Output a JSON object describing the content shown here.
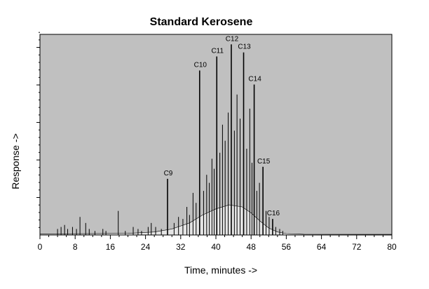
{
  "chart_data": {
    "type": "line",
    "title": "Standard Kerosene",
    "xlabel": "Time, minutes ->",
    "ylabel": "Response ->",
    "xlim": [
      0,
      80
    ],
    "ylim": [
      0,
      100
    ],
    "x_ticks": [
      "0",
      "8",
      "16",
      "24",
      "32",
      "40",
      "48",
      "56",
      "64",
      "72",
      "80"
    ],
    "plot_background": "#c0c0c0",
    "trace_color": "#000000",
    "grid": false,
    "legend": "none",
    "peaks": [
      {
        "label": "C9",
        "x": 29.0,
        "y": 28
      },
      {
        "label": "C10",
        "x": 36.3,
        "y": 82
      },
      {
        "label": "C11",
        "x": 40.2,
        "y": 89
      },
      {
        "label": "C12",
        "x": 43.5,
        "y": 95
      },
      {
        "label": "C13",
        "x": 46.3,
        "y": 91
      },
      {
        "label": "C14",
        "x": 48.7,
        "y": 75
      },
      {
        "label": "C15",
        "x": 50.7,
        "y": 34
      },
      {
        "label": "C16",
        "x": 52.9,
        "y": 8
      }
    ],
    "minor_peaks": [
      {
        "x": 4.0,
        "y": 3
      },
      {
        "x": 4.8,
        "y": 4
      },
      {
        "x": 5.6,
        "y": 5
      },
      {
        "x": 6.3,
        "y": 3
      },
      {
        "x": 7.4,
        "y": 4
      },
      {
        "x": 8.3,
        "y": 3
      },
      {
        "x": 9.1,
        "y": 9
      },
      {
        "x": 10.4,
        "y": 6
      },
      {
        "x": 11.2,
        "y": 3
      },
      {
        "x": 12.5,
        "y": 2
      },
      {
        "x": 14.3,
        "y": 3
      },
      {
        "x": 15.0,
        "y": 2
      },
      {
        "x": 17.8,
        "y": 12
      },
      {
        "x": 19.4,
        "y": 2
      },
      {
        "x": 21.2,
        "y": 4
      },
      {
        "x": 22.3,
        "y": 3
      },
      {
        "x": 23.1,
        "y": 2
      },
      {
        "x": 24.6,
        "y": 4
      },
      {
        "x": 25.3,
        "y": 6
      },
      {
        "x": 26.3,
        "y": 4
      },
      {
        "x": 27.6,
        "y": 3
      },
      {
        "x": 30.5,
        "y": 6
      },
      {
        "x": 31.5,
        "y": 9
      },
      {
        "x": 32.5,
        "y": 8
      },
      {
        "x": 33.4,
        "y": 14
      },
      {
        "x": 34.0,
        "y": 10
      },
      {
        "x": 34.8,
        "y": 21
      },
      {
        "x": 35.5,
        "y": 16
      },
      {
        "x": 37.2,
        "y": 22
      },
      {
        "x": 37.9,
        "y": 30
      },
      {
        "x": 38.5,
        "y": 26
      },
      {
        "x": 39.1,
        "y": 38
      },
      {
        "x": 39.6,
        "y": 33
      },
      {
        "x": 40.9,
        "y": 41
      },
      {
        "x": 41.5,
        "y": 55
      },
      {
        "x": 42.1,
        "y": 47
      },
      {
        "x": 42.8,
        "y": 61
      },
      {
        "x": 44.2,
        "y": 52
      },
      {
        "x": 44.8,
        "y": 70
      },
      {
        "x": 45.5,
        "y": 58
      },
      {
        "x": 47.0,
        "y": 43
      },
      {
        "x": 47.7,
        "y": 63
      },
      {
        "x": 48.2,
        "y": 36
      },
      {
        "x": 49.3,
        "y": 22
      },
      {
        "x": 49.9,
        "y": 26
      },
      {
        "x": 51.4,
        "y": 12
      },
      {
        "x": 52.1,
        "y": 9
      },
      {
        "x": 53.6,
        "y": 4
      },
      {
        "x": 54.5,
        "y": 3
      },
      {
        "x": 55.2,
        "y": 2
      }
    ],
    "envelope": [
      {
        "x": 0,
        "y": 0.5
      },
      {
        "x": 20,
        "y": 0.8
      },
      {
        "x": 26,
        "y": 1.5
      },
      {
        "x": 30,
        "y": 3
      },
      {
        "x": 34,
        "y": 6
      },
      {
        "x": 37,
        "y": 10
      },
      {
        "x": 40,
        "y": 13
      },
      {
        "x": 43,
        "y": 15
      },
      {
        "x": 46,
        "y": 14
      },
      {
        "x": 48,
        "y": 11
      },
      {
        "x": 50,
        "y": 7
      },
      {
        "x": 52,
        "y": 3.5
      },
      {
        "x": 54,
        "y": 1.5
      },
      {
        "x": 56,
        "y": 0.7
      },
      {
        "x": 60,
        "y": 0.4
      },
      {
        "x": 80,
        "y": 0.3
      }
    ]
  }
}
